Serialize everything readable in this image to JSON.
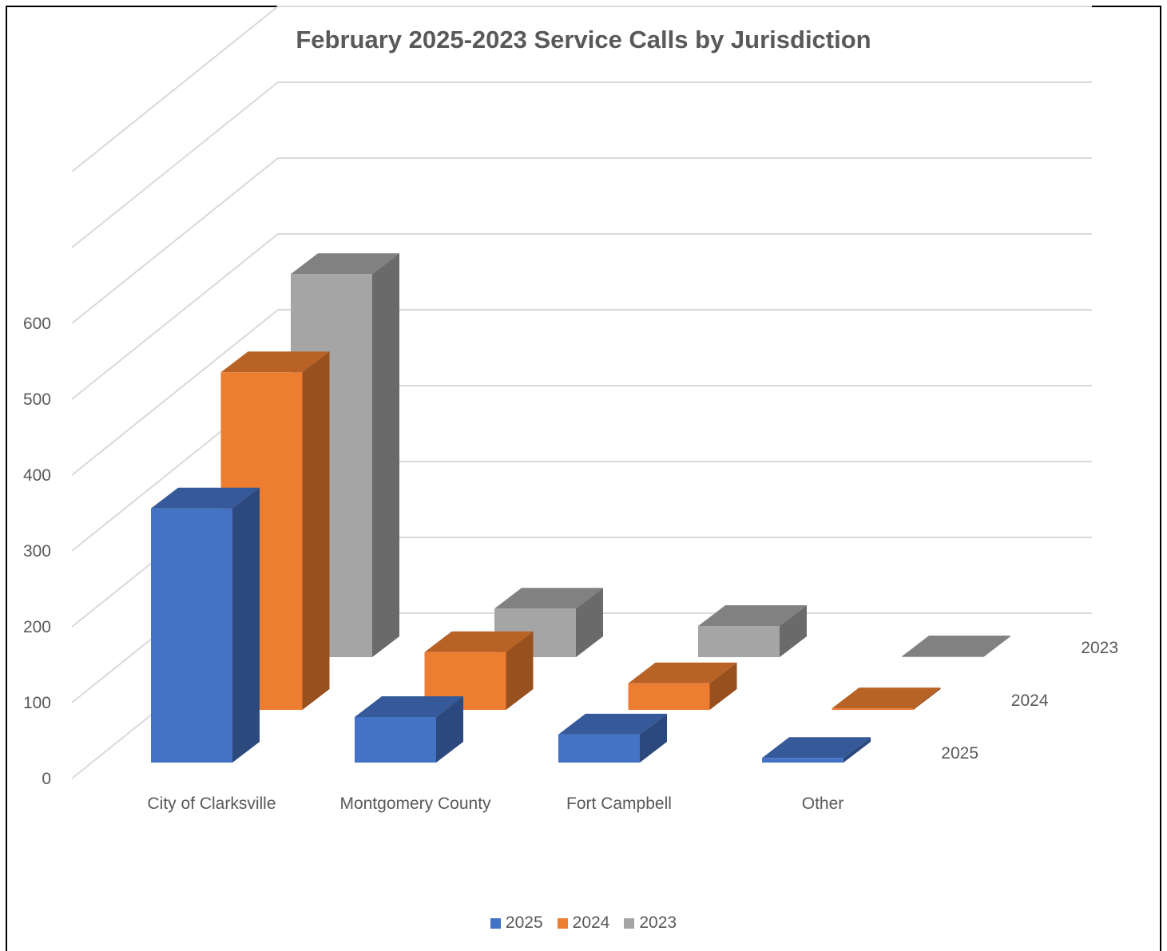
{
  "chart_data": {
    "type": "bar",
    "variant": "3d-column",
    "title": "February 2025-2023 Service Calls by Jurisdiction",
    "categories": [
      "City of Clarksville",
      "Montgomery County",
      "Fort Campbell",
      "Other"
    ],
    "series": [
      {
        "name": "2025",
        "values": [
          335,
          60,
          37,
          6
        ],
        "color": "#4472C4"
      },
      {
        "name": "2024",
        "values": [
          445,
          76,
          35,
          2
        ],
        "color": "#ED7D31"
      },
      {
        "name": "2023",
        "values": [
          505,
          64,
          41,
          1
        ],
        "color": "#A5A5A5"
      }
    ],
    "depth_labels": [
      "2025",
      "2024",
      "2023"
    ],
    "y_ticks": [
      "0",
      "100",
      "200",
      "300",
      "400",
      "500",
      "600"
    ],
    "ylim": [
      0,
      800
    ],
    "grid": true,
    "legend_position": "bottom"
  }
}
